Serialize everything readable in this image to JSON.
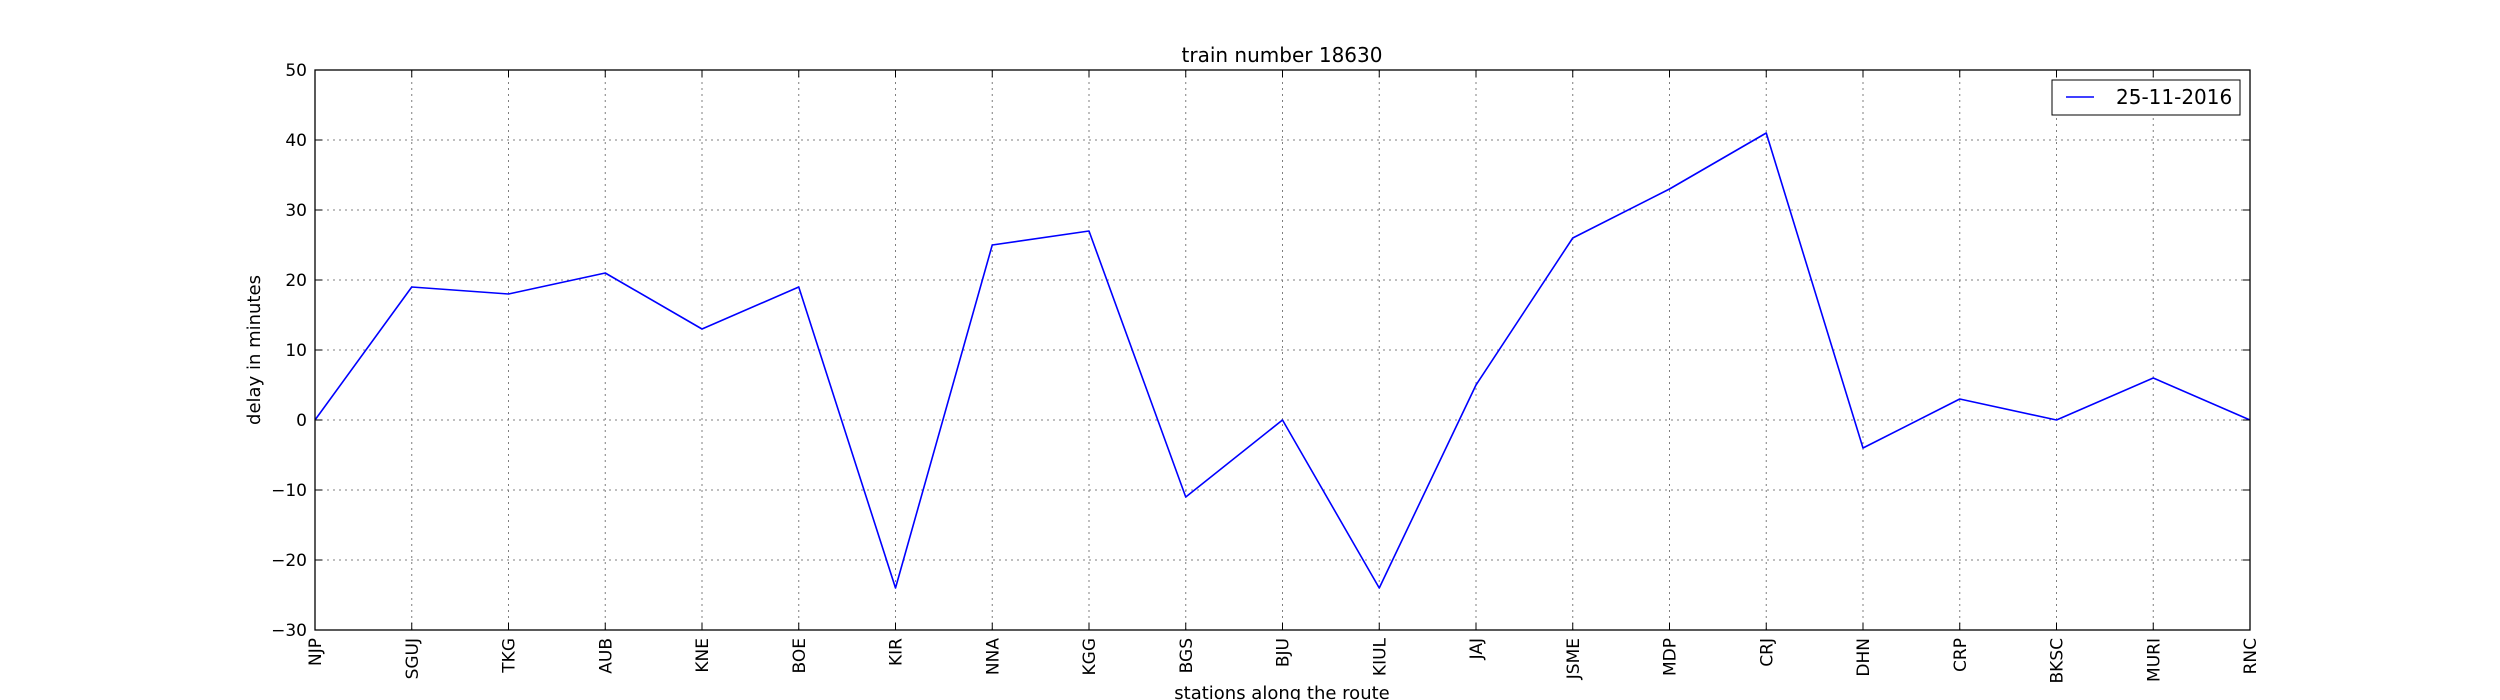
{
  "chart_data": {
    "type": "line",
    "title": "train number 18630",
    "xlabel": "stations along the route",
    "ylabel": "delay in minutes",
    "ylim": [
      -30,
      50
    ],
    "yticks": [
      "50",
      "40",
      "30",
      "20",
      "10",
      "0",
      "−10",
      "−20",
      "−30"
    ],
    "ytick_values": [
      50,
      40,
      30,
      20,
      10,
      0,
      -10,
      -20,
      -30
    ],
    "grid": true,
    "legend_position": "top-right",
    "categories": [
      "NJP",
      "SGUJ",
      "TKG",
      "AUB",
      "KNE",
      "BOE",
      "KIR",
      "NNA",
      "KGG",
      "BGS",
      "BJU",
      "KIUL",
      "JAJ",
      "JSME",
      "MDP",
      "CRJ",
      "DHN",
      "CRP",
      "BKSC",
      "MURI",
      "RNC"
    ],
    "series": [
      {
        "name": "25-11-2016",
        "color": "#0000ff",
        "values": [
          0,
          19,
          18,
          21,
          13,
          19,
          -24,
          25,
          27,
          -11,
          0,
          -24,
          5,
          26,
          33,
          41,
          -4,
          3,
          0,
          6,
          0
        ]
      }
    ]
  }
}
